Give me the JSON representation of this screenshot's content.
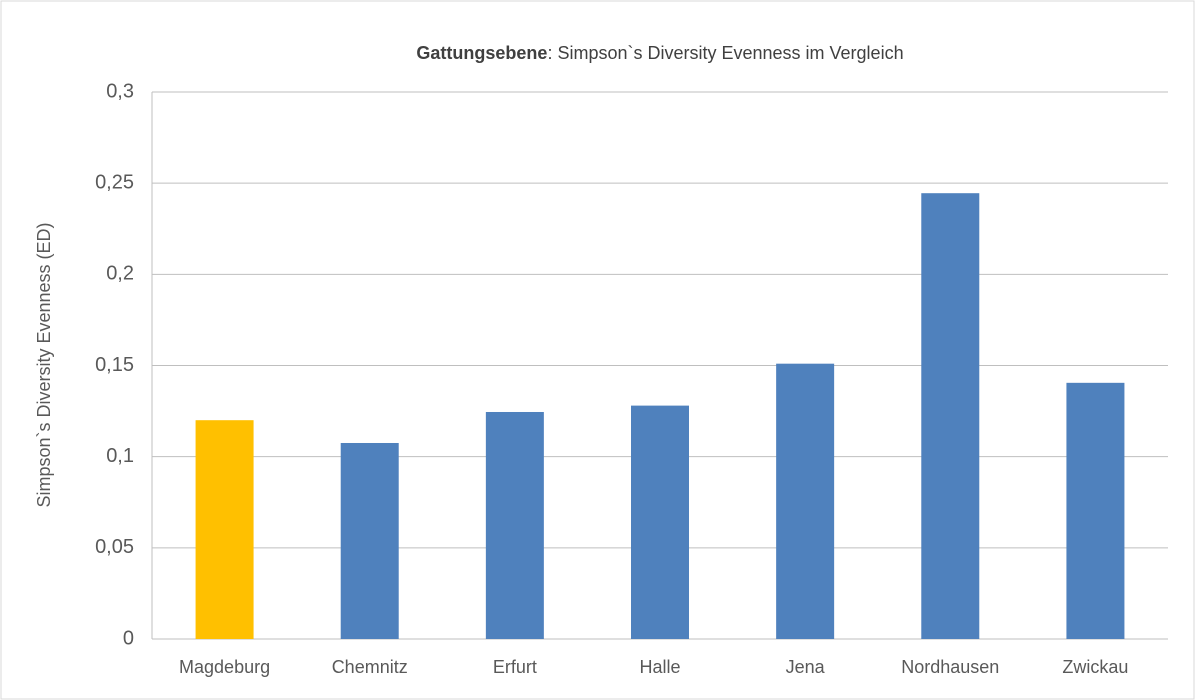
{
  "chart_data": {
    "type": "bar",
    "title": {
      "emphasis": "Gattungsebene",
      "text": ": Simpson`s Diversity Evenness im Vergleich"
    },
    "y_label": "Simpson`s Diversity Evenness (ED)",
    "categories": [
      "Magdeburg",
      "Chemnitz",
      "Erfurt",
      "Halle",
      "Jena",
      "Nordhausen",
      "Zwickau"
    ],
    "values": [
      0.12,
      0.1075,
      0.1245,
      0.128,
      0.151,
      0.2445,
      0.1405
    ],
    "colors": [
      "#ffc000",
      "#4f81bd",
      "#4f81bd",
      "#4f81bd",
      "#4f81bd",
      "#4f81bd",
      "#4f81bd"
    ],
    "ylim": [
      0,
      0.3
    ],
    "yticks": [
      0,
      {
        "value": 0.05,
        "label": "0,05"
      },
      {
        "value": 0.1,
        "label": "0,1"
      },
      {
        "value": 0.15,
        "label": "0,15"
      },
      {
        "value": 0.2,
        "label": "0,2"
      },
      {
        "value": 0.25,
        "label": "0,25"
      },
      {
        "value": 0.3,
        "label": "0,3"
      }
    ],
    "grid": true
  }
}
